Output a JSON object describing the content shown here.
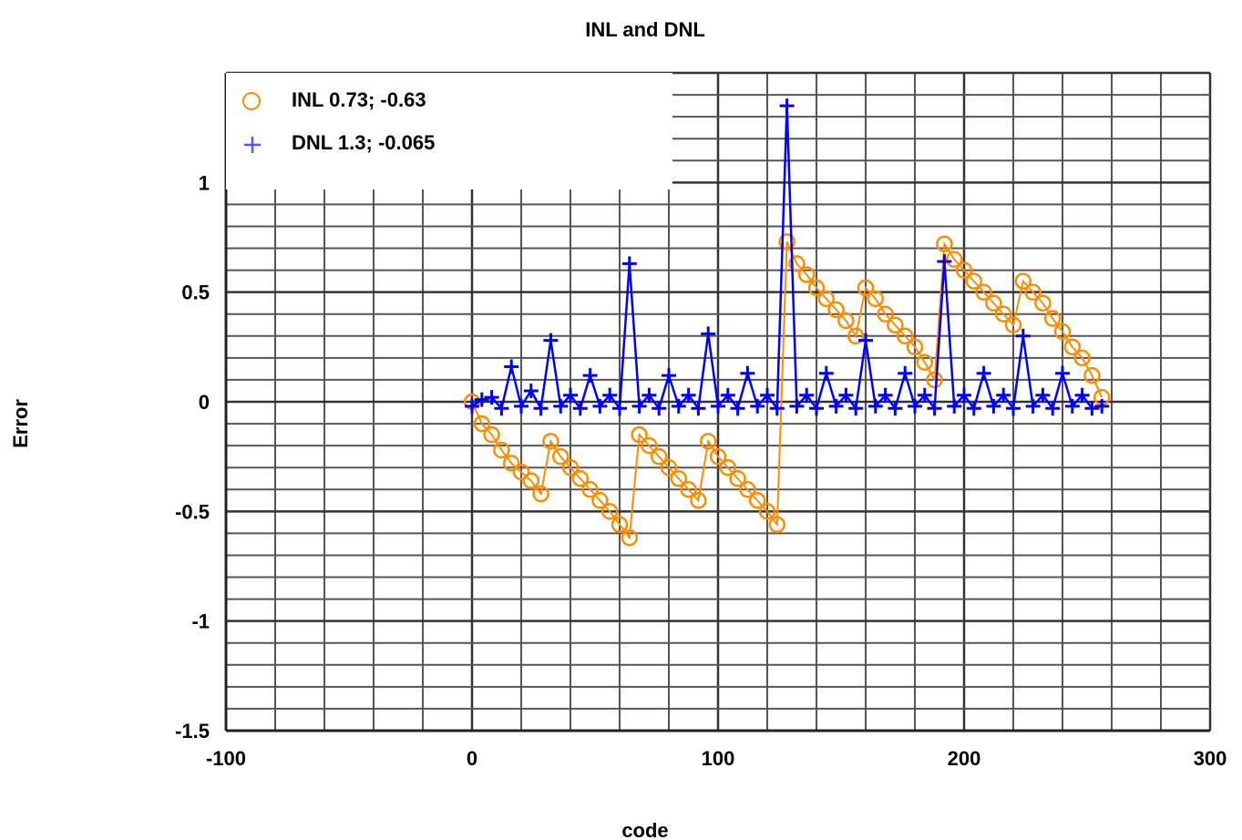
{
  "chart_data": {
    "type": "line",
    "title": "INL and DNL",
    "xlabel": "code",
    "ylabel": "Error",
    "xlim": [
      -100,
      300
    ],
    "ylim": [
      -1.5,
      1.5
    ],
    "x_ticks": [
      -100,
      0,
      100,
      200,
      300
    ],
    "x_tick_labels": [
      "-100",
      "0",
      "100",
      "200",
      "300"
    ],
    "y_ticks": [
      -1.5,
      -1,
      -0.5,
      0,
      0.5,
      1
    ],
    "y_tick_labels": [
      "-1.5",
      "-1",
      "-0.5",
      "0",
      "0.5",
      "1"
    ],
    "grid": true,
    "legend_position": "top-left",
    "x_range": [
      0,
      257
    ],
    "series": [
      {
        "name": "INL 0.73; -0.63",
        "marker": "circle",
        "color": "#FF8C00",
        "stats": {
          "max": 0.73,
          "min": -0.63
        },
        "x": [
          0,
          4,
          8,
          12,
          16,
          20,
          24,
          28,
          32,
          36,
          40,
          44,
          48,
          52,
          56,
          60,
          64,
          68,
          72,
          76,
          80,
          84,
          88,
          92,
          96,
          100,
          104,
          108,
          112,
          116,
          120,
          124,
          128,
          132,
          136,
          140,
          144,
          148,
          152,
          156,
          160,
          164,
          168,
          172,
          176,
          180,
          184,
          188,
          192,
          196,
          200,
          204,
          208,
          212,
          216,
          220,
          224,
          228,
          232,
          236,
          240,
          244,
          248,
          252,
          256
        ],
        "values": [
          0,
          -0.1,
          -0.15,
          -0.22,
          -0.28,
          -0.32,
          -0.36,
          -0.42,
          -0.18,
          -0.25,
          -0.3,
          -0.35,
          -0.4,
          -0.45,
          -0.5,
          -0.56,
          -0.62,
          -0.15,
          -0.2,
          -0.25,
          -0.3,
          -0.35,
          -0.4,
          -0.45,
          -0.18,
          -0.25,
          -0.3,
          -0.35,
          -0.4,
          -0.45,
          -0.5,
          -0.56,
          0.73,
          0.63,
          0.58,
          0.52,
          0.47,
          0.42,
          0.37,
          0.3,
          0.52,
          0.47,
          0.4,
          0.35,
          0.3,
          0.25,
          0.18,
          0.1,
          0.72,
          0.65,
          0.6,
          0.55,
          0.5,
          0.45,
          0.4,
          0.35,
          0.55,
          0.5,
          0.45,
          0.38,
          0.32,
          0.25,
          0.2,
          0.12,
          0.02
        ]
      },
      {
        "name": "DNL 1.3; -0.065",
        "marker": "plus",
        "color": "#0000FF",
        "stats": {
          "max": 1.3,
          "min": -0.065
        },
        "x": [
          0,
          4,
          8,
          12,
          16,
          20,
          24,
          28,
          32,
          36,
          40,
          44,
          48,
          52,
          56,
          60,
          64,
          68,
          72,
          76,
          80,
          84,
          88,
          92,
          96,
          100,
          104,
          108,
          112,
          116,
          120,
          124,
          128,
          132,
          136,
          140,
          144,
          148,
          152,
          156,
          160,
          164,
          168,
          172,
          176,
          180,
          184,
          188,
          192,
          196,
          200,
          204,
          208,
          212,
          216,
          220,
          224,
          228,
          232,
          236,
          240,
          244,
          248,
          252,
          256
        ],
        "values": [
          -0.02,
          0.01,
          0.02,
          -0.03,
          0.16,
          -0.02,
          0.05,
          -0.03,
          0.28,
          -0.02,
          0.03,
          -0.03,
          0.12,
          -0.02,
          0.03,
          -0.03,
          0.63,
          -0.02,
          0.03,
          -0.03,
          0.12,
          -0.02,
          0.03,
          -0.03,
          0.31,
          -0.02,
          0.03,
          -0.03,
          0.13,
          -0.02,
          0.03,
          -0.03,
          1.35,
          -0.02,
          0.03,
          -0.03,
          0.13,
          -0.02,
          0.03,
          -0.03,
          0.28,
          -0.02,
          0.03,
          -0.03,
          0.13,
          -0.02,
          0.03,
          -0.03,
          0.64,
          -0.02,
          0.03,
          -0.03,
          0.13,
          -0.02,
          0.03,
          -0.03,
          0.3,
          -0.02,
          0.03,
          -0.03,
          0.13,
          -0.02,
          0.03,
          -0.03,
          -0.02
        ]
      }
    ]
  }
}
